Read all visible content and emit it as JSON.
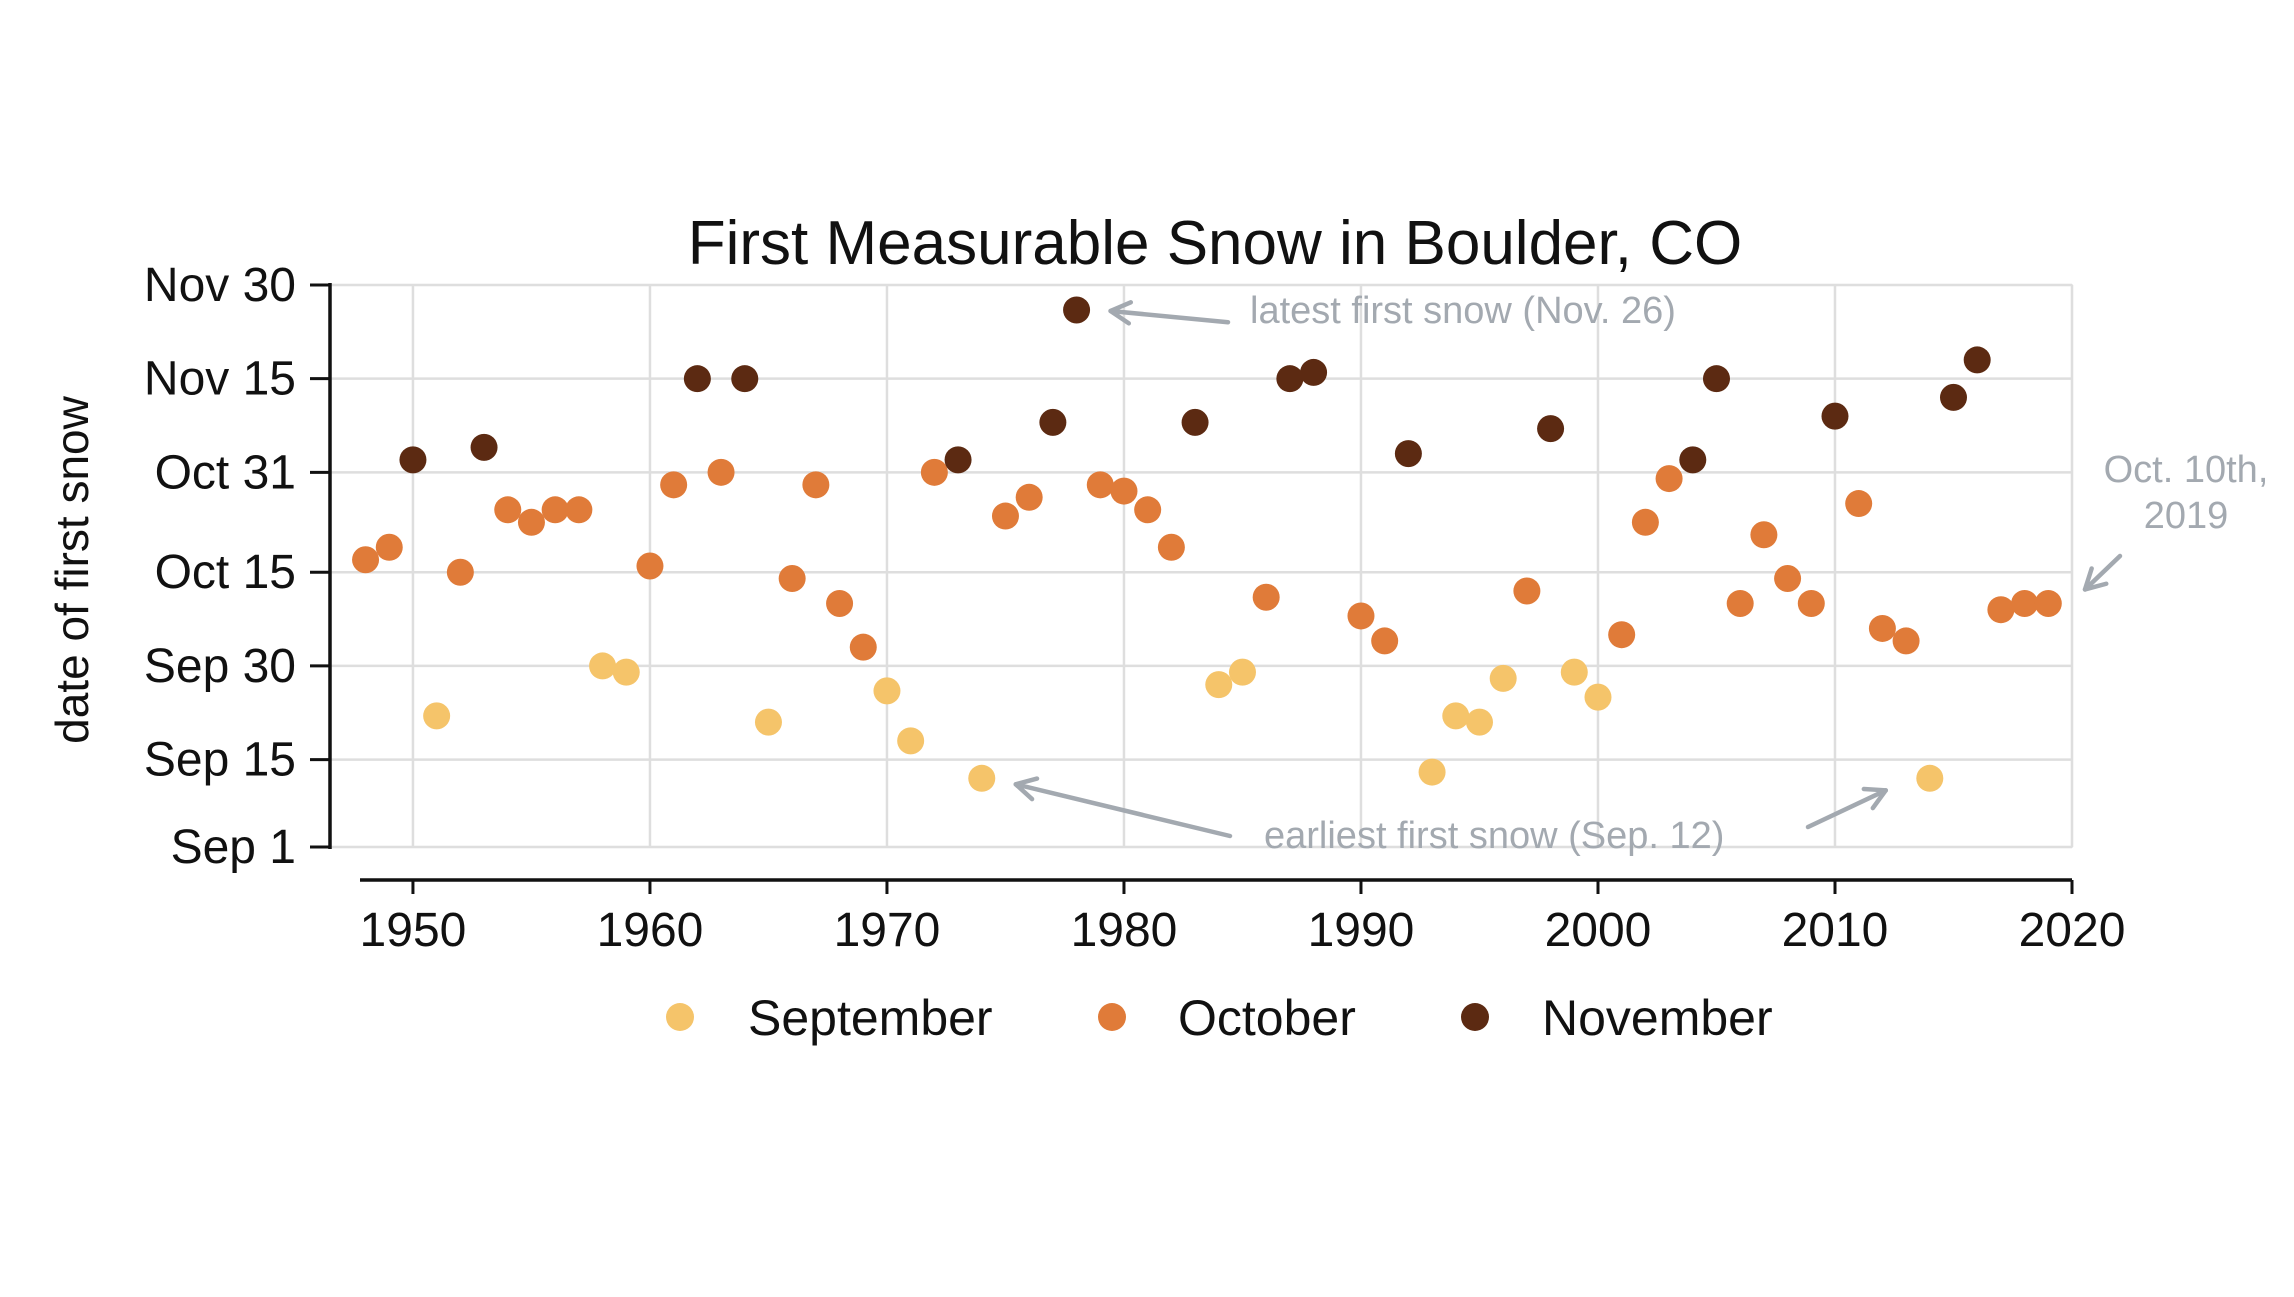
{
  "chart_data": {
    "type": "scatter",
    "title": "First Measurable Snow in Boulder, CO",
    "xlabel": "",
    "ylabel": "date of first snow",
    "xlim": [
      1946.5,
      2020
    ],
    "x_ticks": [
      1950,
      1960,
      1970,
      1980,
      1990,
      2000,
      2010,
      2020
    ],
    "ylim": [
      "Sep 1",
      "Nov 30"
    ],
    "y_ticks": [
      "Sep 1",
      "Sep 15",
      "Sep 30",
      "Oct 15",
      "Oct 31",
      "Nov 15",
      "Nov 30"
    ],
    "grid": true,
    "legend_position": "bottom",
    "series": [
      {
        "name": "September",
        "color": "#f5c46a",
        "points": [
          {
            "x": 1951,
            "y": "Sep 22"
          },
          {
            "x": 1958,
            "y": "Sep 30"
          },
          {
            "x": 1959,
            "y": "Sep 29"
          },
          {
            "x": 1965,
            "y": "Sep 21"
          },
          {
            "x": 1970,
            "y": "Sep 26"
          },
          {
            "x": 1971,
            "y": "Sep 18"
          },
          {
            "x": 1974,
            "y": "Sep 12"
          },
          {
            "x": 1984,
            "y": "Sep 27"
          },
          {
            "x": 1985,
            "y": "Sep 29"
          },
          {
            "x": 1993,
            "y": "Sep 13"
          },
          {
            "x": 1994,
            "y": "Sep 22"
          },
          {
            "x": 1995,
            "y": "Sep 21"
          },
          {
            "x": 1996,
            "y": "Sep 28"
          },
          {
            "x": 1999,
            "y": "Sep 29"
          },
          {
            "x": 2000,
            "y": "Sep 25"
          },
          {
            "x": 2014,
            "y": "Sep 12"
          }
        ]
      },
      {
        "name": "October",
        "color": "#e07b39",
        "points": [
          {
            "x": 1948,
            "y": "Oct 17"
          },
          {
            "x": 1949,
            "y": "Oct 19"
          },
          {
            "x": 1952,
            "y": "Oct 15"
          },
          {
            "x": 1954,
            "y": "Oct 25"
          },
          {
            "x": 1955,
            "y": "Oct 23"
          },
          {
            "x": 1956,
            "y": "Oct 25"
          },
          {
            "x": 1957,
            "y": "Oct 25"
          },
          {
            "x": 1960,
            "y": "Oct 16"
          },
          {
            "x": 1961,
            "y": "Oct 29"
          },
          {
            "x": 1963,
            "y": "Oct 31"
          },
          {
            "x": 1966,
            "y": "Oct 14"
          },
          {
            "x": 1967,
            "y": "Oct 29"
          },
          {
            "x": 1968,
            "y": "Oct 10"
          },
          {
            "x": 1969,
            "y": "Oct 3"
          },
          {
            "x": 1972,
            "y": "Oct 31"
          },
          {
            "x": 1975,
            "y": "Oct 24"
          },
          {
            "x": 1976,
            "y": "Oct 27"
          },
          {
            "x": 1979,
            "y": "Oct 29"
          },
          {
            "x": 1980,
            "y": "Oct 28"
          },
          {
            "x": 1981,
            "y": "Oct 25"
          },
          {
            "x": 1982,
            "y": "Oct 19"
          },
          {
            "x": 1986,
            "y": "Oct 11"
          },
          {
            "x": 1990,
            "y": "Oct 8"
          },
          {
            "x": 1991,
            "y": "Oct 4"
          },
          {
            "x": 1997,
            "y": "Oct 12"
          },
          {
            "x": 2001,
            "y": "Oct 5"
          },
          {
            "x": 2002,
            "y": "Oct 23"
          },
          {
            "x": 2003,
            "y": "Oct 30"
          },
          {
            "x": 2006,
            "y": "Oct 10"
          },
          {
            "x": 2007,
            "y": "Oct 21"
          },
          {
            "x": 2008,
            "y": "Oct 14"
          },
          {
            "x": 2009,
            "y": "Oct 10"
          },
          {
            "x": 2011,
            "y": "Oct 26"
          },
          {
            "x": 2012,
            "y": "Oct 6"
          },
          {
            "x": 2013,
            "y": "Oct 4"
          },
          {
            "x": 2017,
            "y": "Oct 9"
          },
          {
            "x": 2018,
            "y": "Oct 10"
          },
          {
            "x": 2019,
            "y": "Oct 10"
          }
        ]
      },
      {
        "name": "November",
        "color": "#5c2a12",
        "points": [
          {
            "x": 1950,
            "y": "Nov 2"
          },
          {
            "x": 1953,
            "y": "Nov 4"
          },
          {
            "x": 1962,
            "y": "Nov 15"
          },
          {
            "x": 1964,
            "y": "Nov 15"
          },
          {
            "x": 1973,
            "y": "Nov 2"
          },
          {
            "x": 1977,
            "y": "Nov 8"
          },
          {
            "x": 1978,
            "y": "Nov 26"
          },
          {
            "x": 1983,
            "y": "Nov 8"
          },
          {
            "x": 1987,
            "y": "Nov 15"
          },
          {
            "x": 1988,
            "y": "Nov 16"
          },
          {
            "x": 1992,
            "y": "Nov 3"
          },
          {
            "x": 1998,
            "y": "Nov 7"
          },
          {
            "x": 2004,
            "y": "Nov 2"
          },
          {
            "x": 2005,
            "y": "Nov 15"
          },
          {
            "x": 2010,
            "y": "Nov 9"
          },
          {
            "x": 2015,
            "y": "Nov 12"
          },
          {
            "x": 2016,
            "y": "Nov 18"
          }
        ]
      }
    ],
    "annotations": [
      {
        "text": "latest first snow (Nov. 26)",
        "points_to": {
          "x": 1978,
          "y": "Nov 26"
        }
      },
      {
        "text": "earliest first snow (Sep. 12)",
        "points_to": [
          {
            "x": 1974,
            "y": "Sep 12"
          },
          {
            "x": 2014,
            "y": "Sep 12"
          }
        ]
      },
      {
        "text": [
          "Oct. 10th,",
          "2019"
        ],
        "points_to": {
          "x": 2019,
          "y": "Oct 10"
        }
      }
    ]
  }
}
